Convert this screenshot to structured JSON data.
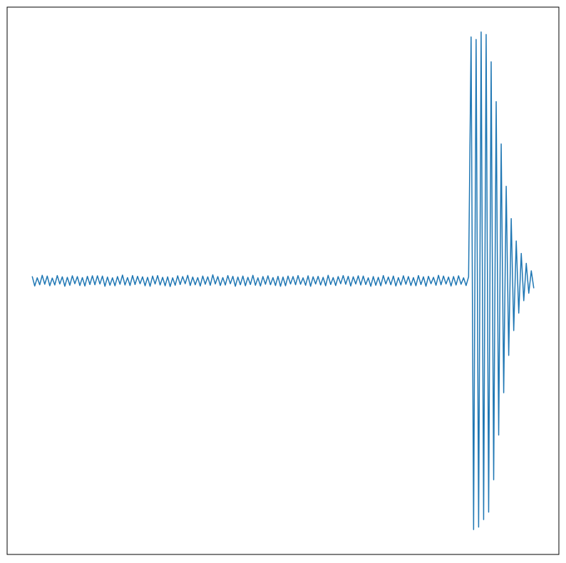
{
  "chart_data": {
    "type": "line",
    "color": "#1f77b4",
    "xlim": [
      -10,
      210
    ],
    "ylim": [
      -1.1,
      1.1
    ],
    "xticks": [],
    "yticks": [],
    "grid": false,
    "values": [
      0.018,
      -0.021,
      0.012,
      -0.016,
      0.022,
      -0.014,
      0.019,
      -0.02,
      0.011,
      -0.017,
      0.021,
      -0.013,
      0.016,
      -0.022,
      0.014,
      -0.018,
      0.02,
      -0.012,
      0.017,
      -0.019,
      0.013,
      -0.021,
      0.018,
      -0.015,
      0.02,
      -0.016,
      0.02,
      -0.013,
      0.019,
      -0.022,
      0.015,
      -0.018,
      0.012,
      -0.02,
      0.017,
      -0.014,
      0.023,
      -0.017,
      0.013,
      -0.019,
      0.021,
      -0.015,
      0.018,
      -0.012,
      0.016,
      -0.02,
      0.014,
      -0.022,
      0.019,
      -0.013,
      0.021,
      -0.017,
      0.014,
      -0.02,
      0.016,
      -0.023,
      0.012,
      -0.018,
      0.02,
      -0.015,
      0.017,
      -0.012,
      0.022,
      -0.019,
      0.015,
      -0.016,
      0.013,
      -0.021,
      0.019,
      -0.014,
      0.016,
      -0.018,
      0.024,
      -0.013,
      0.017,
      -0.019,
      0.013,
      -0.017,
      0.021,
      -0.012,
      0.018,
      -0.022,
      0.015,
      -0.016,
      0.019,
      -0.02,
      0.014,
      -0.015,
      0.022,
      -0.018,
      0.012,
      -0.021,
      0.017,
      -0.014,
      0.02,
      -0.016,
      0.013,
      -0.019,
      0.018,
      -0.022,
      0.015,
      -0.02,
      0.019,
      -0.013,
      0.017,
      -0.016,
      0.021,
      -0.014,
      0.012,
      -0.018,
      0.02,
      -0.022,
      0.016,
      -0.013,
      0.018,
      -0.017,
      0.014,
      -0.02,
      0.022,
      -0.015,
      0.013,
      -0.019,
      0.017,
      -0.012,
      0.021,
      -0.014,
      0.018,
      -0.021,
      0.016,
      -0.013,
      0.02,
      -0.017,
      0.019,
      -0.015,
      0.012,
      -0.022,
      0.017,
      -0.018,
      0.014,
      -0.02,
      0.021,
      -0.013,
      0.015,
      -0.016,
      0.019,
      -0.021,
      0.013,
      -0.017,
      0.02,
      -0.014,
      0.017,
      -0.019,
      0.013,
      -0.02,
      0.021,
      -0.015,
      0.016,
      -0.022,
      0.018,
      -0.012,
      0.014,
      -0.018,
      0.022,
      -0.016,
      0.019,
      -0.013,
      0.015,
      -0.021,
      0.017,
      -0.017,
      0.02,
      -0.014,
      0.012,
      -0.019,
      0.016,
      0.98,
      -1.0,
      0.97,
      -0.99,
      1.0,
      -0.96,
      0.99,
      -0.93,
      0.88,
      -0.8,
      0.72,
      -0.62,
      0.55,
      -0.45,
      0.38,
      -0.3,
      0.25,
      -0.2,
      0.16,
      -0.13,
      0.11,
      -0.08,
      0.07,
      -0.05,
      0.04,
      -0.03
    ]
  }
}
